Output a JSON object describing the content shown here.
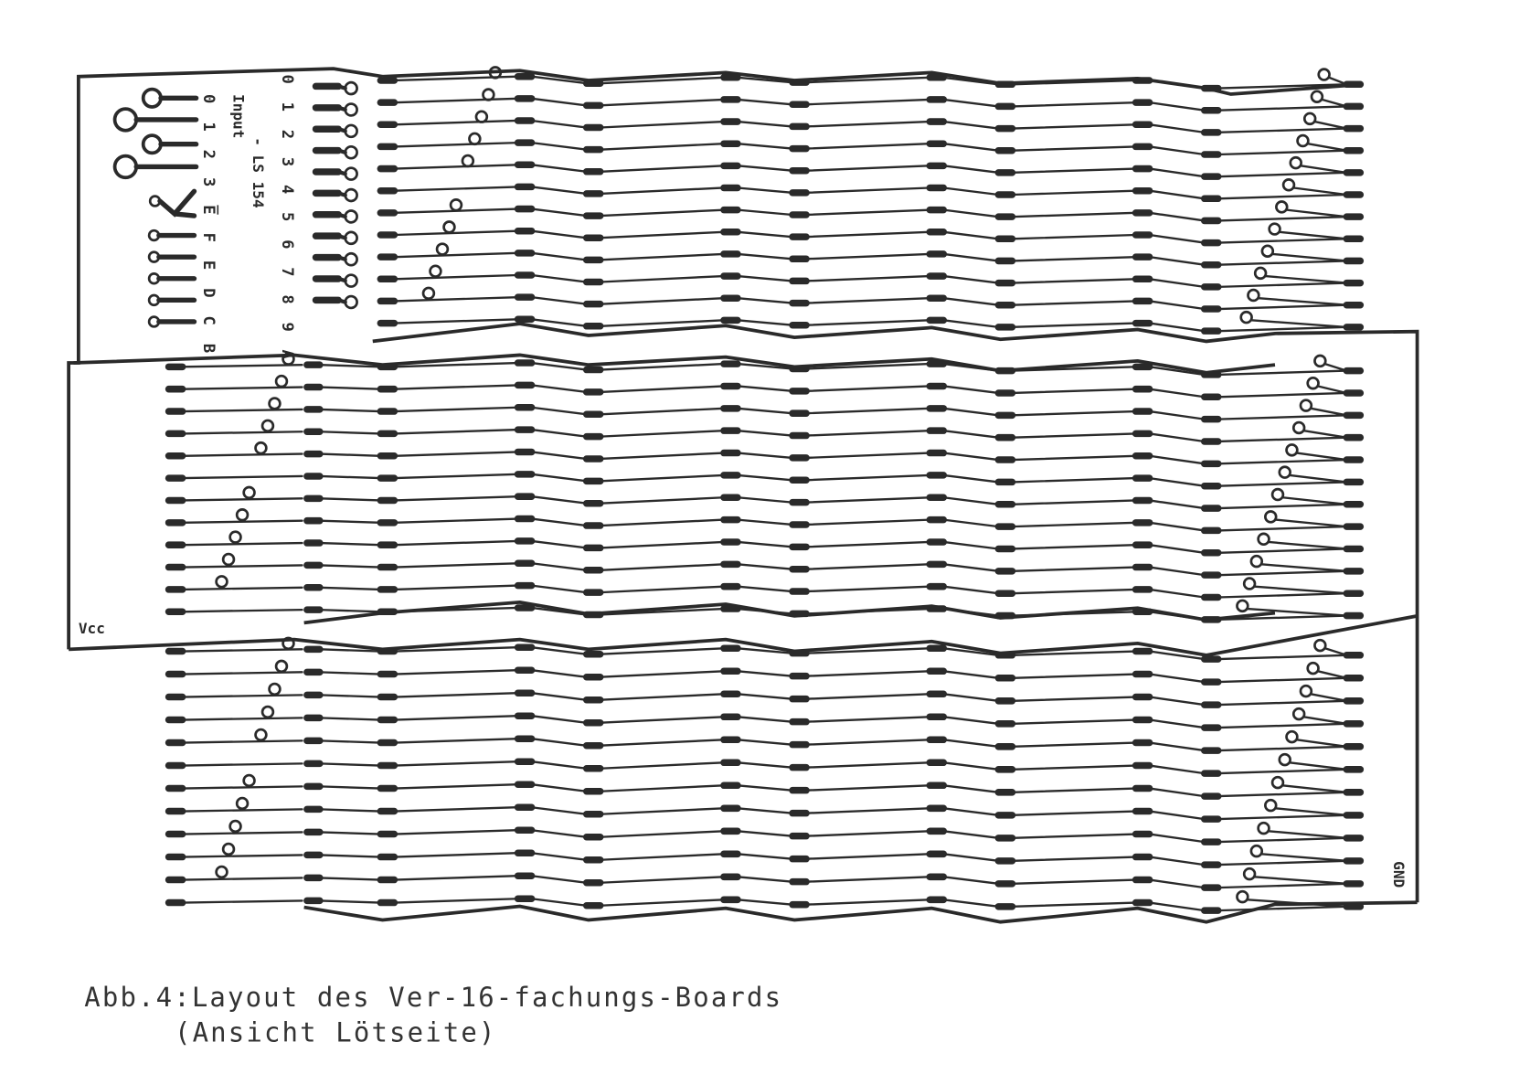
{
  "caption": {
    "line1": "Abb.4:Layout des Ver-16-fachungs-Boards",
    "line2": "(Ansicht Lötseite)"
  },
  "board_labels": {
    "input": "Input",
    "input_pins": "0 1 2 3 E̅ F E D C B",
    "output_pins": "0 1 2 3 4 5 6 7 8 9 A",
    "chip": "- LS 154",
    "vcc": "Vcc",
    "gnd": "GND"
  },
  "colors": {
    "ink": "#2a2a2a",
    "paper": "#ffffff"
  }
}
